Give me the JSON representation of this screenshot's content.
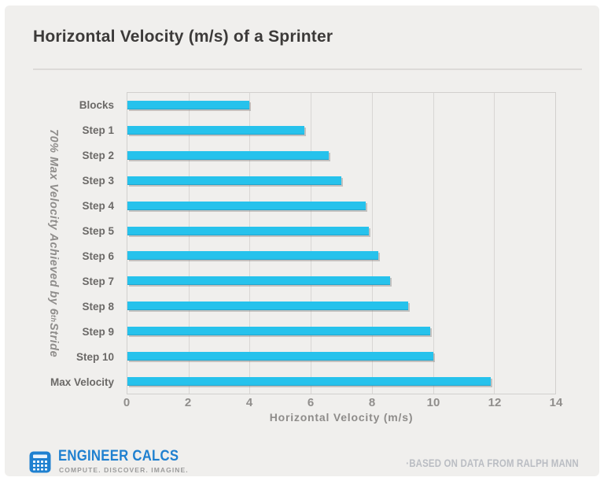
{
  "header": {
    "title": "Horizontal Velocity (m/s) of a Sprinter"
  },
  "chart_data": {
    "type": "bar",
    "orientation": "horizontal",
    "title": "Horizontal Velocity (m/s) of a Sprinter",
    "categories": [
      "Blocks",
      "Step 1",
      "Step 2",
      "Step 3",
      "Step 4",
      "Step 5",
      "Step 6",
      "Step 7",
      "Step 8",
      "Step 9",
      "Step 10",
      "Max Velocity"
    ],
    "values": [
      4.0,
      5.8,
      6.6,
      7.0,
      7.8,
      7.9,
      8.2,
      8.6,
      9.2,
      9.9,
      10.0,
      11.9
    ],
    "xlabel": "Horizontal Velocity (m/s)",
    "ylabel": {
      "prefix": "70% Max Velocity Achieved by 6",
      "sup": "th",
      "suffix": " Stride"
    },
    "xlim": [
      0,
      14
    ],
    "xticks": [
      0,
      2,
      4,
      6,
      8,
      10,
      12,
      14
    ],
    "grid": true,
    "legend": false,
    "bar_color": "#26c2ec",
    "background_color": "#f0efed"
  },
  "footer": {
    "brand": "ENGINEER CALCS",
    "tagline": "COMPUTE. DISCOVER. IMAGINE.",
    "source_note": "·BASED ON DATA FROM RALPH MANN",
    "brand_color": "#1f80d0"
  }
}
